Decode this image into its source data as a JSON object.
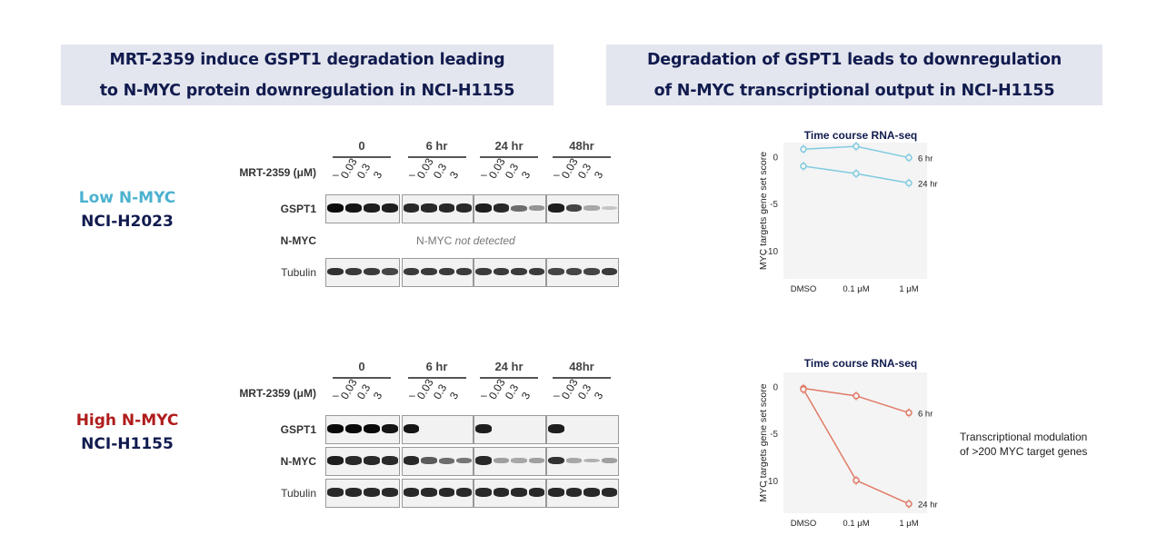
{
  "left_header": {
    "line1": "MRT-2359 induce GSPT1 degradation leading",
    "line2": "to N-MYC protein downregulation in NCI-H1155"
  },
  "right_header": {
    "line1": "Degradation of GSPT1 leads to downregulation",
    "line2": "of N-MYC transcriptional output in NCI-H1155"
  },
  "panels": [
    {
      "condition": "Low N-MYC",
      "cell_line": "NCI-H2023",
      "timepoints": [
        "0",
        "6 hr",
        "24 hr",
        "48hr"
      ],
      "dose_label": "MRT-2359 (μM)",
      "doses": [
        "–",
        "0.03",
        "0.3",
        "3"
      ],
      "rows": [
        {
          "label": "GSPT1",
          "levels": [
            [
              1,
              0.95,
              0.9,
              0.9
            ],
            [
              0.85,
              0.85,
              0.85,
              0.85
            ],
            [
              0.9,
              0.85,
              0.5,
              0.3
            ],
            [
              0.9,
              0.7,
              0.2,
              0.05
            ]
          ]
        },
        {
          "label": "N-MYC",
          "not_detected_prefix": "N-MYC",
          "not_detected_suffix": "not detected"
        },
        {
          "label": "Tubulin",
          "levels": [
            [
              0.8,
              0.75,
              0.75,
              0.7
            ],
            [
              0.75,
              0.75,
              0.75,
              0.75
            ],
            [
              0.75,
              0.75,
              0.75,
              0.75
            ],
            [
              0.7,
              0.7,
              0.7,
              0.75
            ]
          ]
        }
      ]
    },
    {
      "condition": "High N-MYC",
      "cell_line": "NCI-H1155",
      "timepoints": [
        "0",
        "6 hr",
        "24 hr",
        "48hr"
      ],
      "dose_label": "MRT-2359 (μM)",
      "doses": [
        "–",
        "0.03",
        "0.3",
        "3"
      ],
      "rows": [
        {
          "label": "GSPT1",
          "levels": [
            [
              1,
              1,
              1,
              0.95
            ],
            [
              0.95,
              0,
              0,
              0
            ],
            [
              0.9,
              0,
              0,
              0
            ],
            [
              0.9,
              0,
              0,
              0
            ]
          ]
        },
        {
          "label": "N-MYC",
          "levels": [
            [
              0.9,
              0.85,
              0.85,
              0.85
            ],
            [
              0.85,
              0.6,
              0.5,
              0.45
            ],
            [
              0.85,
              0.25,
              0.2,
              0.25
            ],
            [
              0.8,
              0.2,
              0.15,
              0.25
            ]
          ]
        },
        {
          "label": "Tubulin",
          "levels": [
            [
              0.85,
              0.85,
              0.85,
              0.85
            ],
            [
              0.85,
              0.85,
              0.85,
              0.85
            ],
            [
              0.85,
              0.85,
              0.85,
              0.85
            ],
            [
              0.85,
              0.85,
              0.85,
              0.85
            ]
          ]
        }
      ]
    }
  ],
  "chart_data": [
    {
      "type": "line",
      "title": "Time  course RNA-seq",
      "ylabel": "MYC targets gene set score",
      "categories": [
        "DMSO",
        "0.1 μM",
        "1 μM"
      ],
      "ylim": [
        -13,
        1.5
      ],
      "yticks": [
        "0",
        "-5",
        "-10"
      ],
      "color": "#7fcbe0",
      "series": [
        {
          "name": "6 hr",
          "values": [
            0.8,
            1.1,
            -0.1
          ]
        },
        {
          "name": "24 hr",
          "values": [
            -1.0,
            -1.8,
            -2.8
          ]
        }
      ]
    },
    {
      "type": "line",
      "title": "Time  course RNA-seq",
      "ylabel": "MYC targets gene set score",
      "categories": [
        "DMSO",
        "0.1 μM",
        "1 μM"
      ],
      "ylim": [
        -13.5,
        1.5
      ],
      "yticks": [
        "0",
        "-5",
        "-10"
      ],
      "color": "#e07a66",
      "series": [
        {
          "name": "6 hr",
          "values": [
            -0.2,
            -1.0,
            -2.8
          ]
        },
        {
          "name": "24 hr",
          "values": [
            -0.3,
            -10.0,
            -12.5
          ]
        }
      ]
    }
  ],
  "annotation": {
    "line1": "Transcriptional modulation",
    "line2": "of >200 MYC target genes"
  }
}
